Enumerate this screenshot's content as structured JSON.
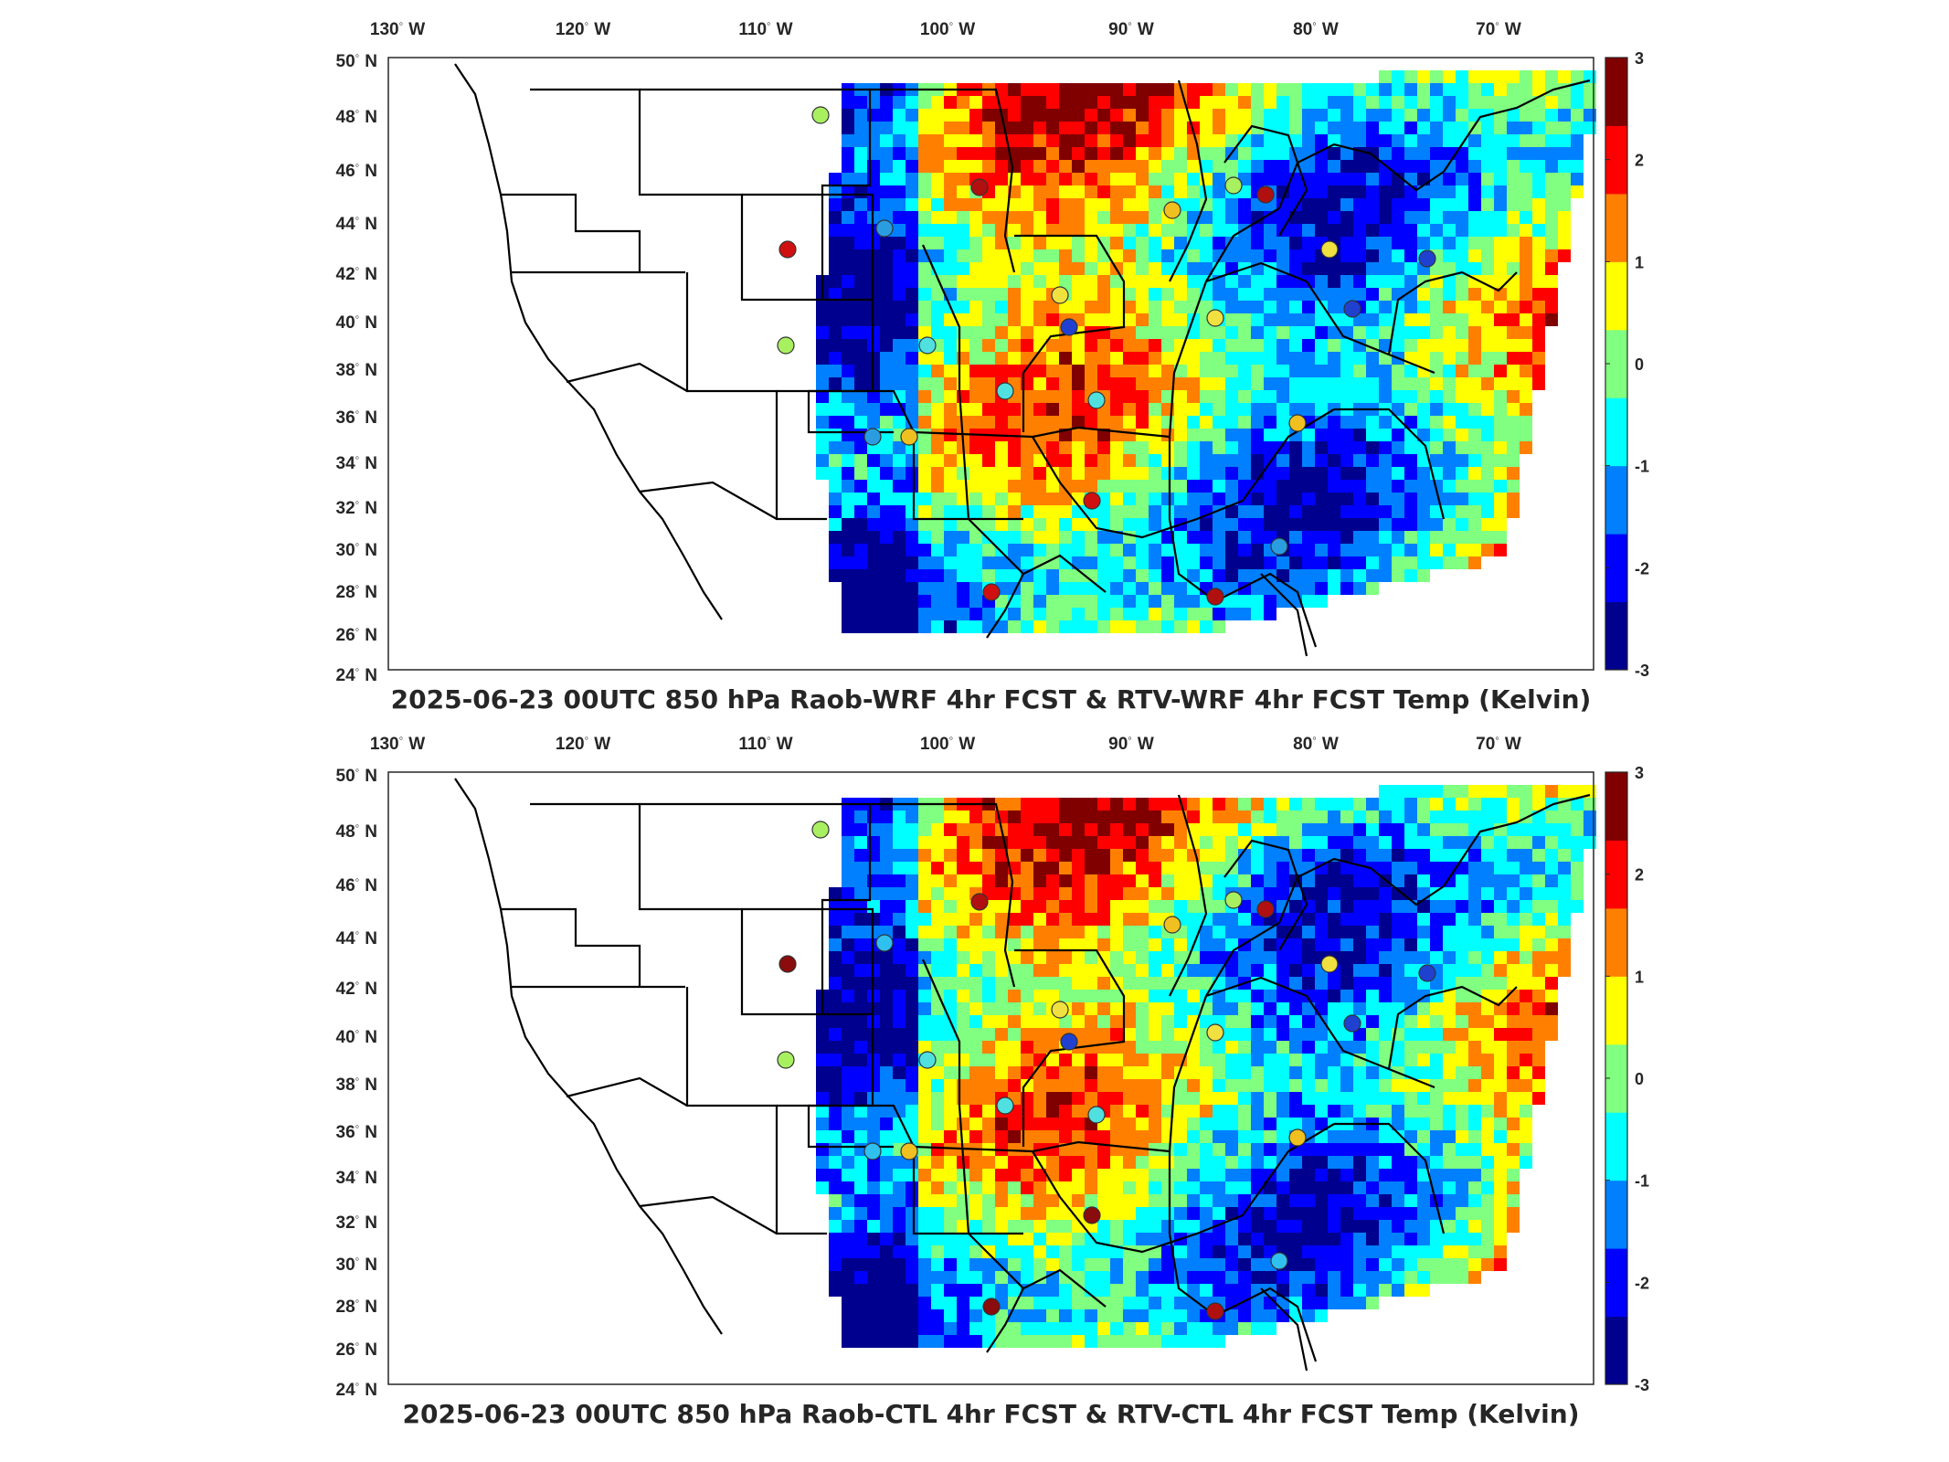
{
  "panels": [
    {
      "title": "2025-06-23 00UTC 850 hPa Raob-WRF 4hr FCST & RTV-WRF 4hr FCST Temp (Kelvin)",
      "station_colors": [
        "#a8f060",
        "#2a9de0",
        "#d01010",
        "#b01010",
        "#2040d0",
        "#f0c020",
        "#50e0e0",
        "#f0e040"
      ]
    },
    {
      "title": "2025-06-23 00UTC 850 hPa Raob-CTL 4hr FCST & RTV-CTL 4hr FCST Temp (Kelvin)",
      "station_colors": [
        "#a8f060",
        "#30c0f0",
        "#8a0c0c",
        "#b01010",
        "#2040d0",
        "#f0c020",
        "#50e0e0",
        "#f0e040"
      ]
    }
  ],
  "lon_labels": [
    {
      "deg": "130",
      "hemi": "W"
    },
    {
      "deg": "120",
      "hemi": "W"
    },
    {
      "deg": "110",
      "hemi": "W"
    },
    {
      "deg": "100",
      "hemi": "W"
    },
    {
      "deg": "90",
      "hemi": "W"
    },
    {
      "deg": "80",
      "hemi": "W"
    },
    {
      "deg": "70",
      "hemi": "W"
    }
  ],
  "lat_labels": [
    {
      "deg": "50",
      "hemi": "N"
    },
    {
      "deg": "48",
      "hemi": "N"
    },
    {
      "deg": "46",
      "hemi": "N"
    },
    {
      "deg": "44",
      "hemi": "N"
    },
    {
      "deg": "42",
      "hemi": "N"
    },
    {
      "deg": "40",
      "hemi": "N"
    },
    {
      "deg": "38",
      "hemi": "N"
    },
    {
      "deg": "36",
      "hemi": "N"
    },
    {
      "deg": "34",
      "hemi": "N"
    },
    {
      "deg": "32",
      "hemi": "N"
    },
    {
      "deg": "30",
      "hemi": "N"
    },
    {
      "deg": "28",
      "hemi": "N"
    },
    {
      "deg": "26",
      "hemi": "N"
    },
    {
      "deg": "24",
      "hemi": "N"
    }
  ],
  "colorbar": {
    "ticks": [
      "3",
      "2",
      "1",
      "0",
      "-1",
      "-2",
      "-3"
    ],
    "range": [
      -3,
      3
    ],
    "colors": [
      "#00008f",
      "#0000ff",
      "#0080ff",
      "#00ffff",
      "#80ff80",
      "#ffff00",
      "#ff8000",
      "#ff0000",
      "#800000"
    ]
  },
  "colors": {
    "land": "#ffffff",
    "field_base": "#5ad7e0",
    "border": "#000000"
  }
}
